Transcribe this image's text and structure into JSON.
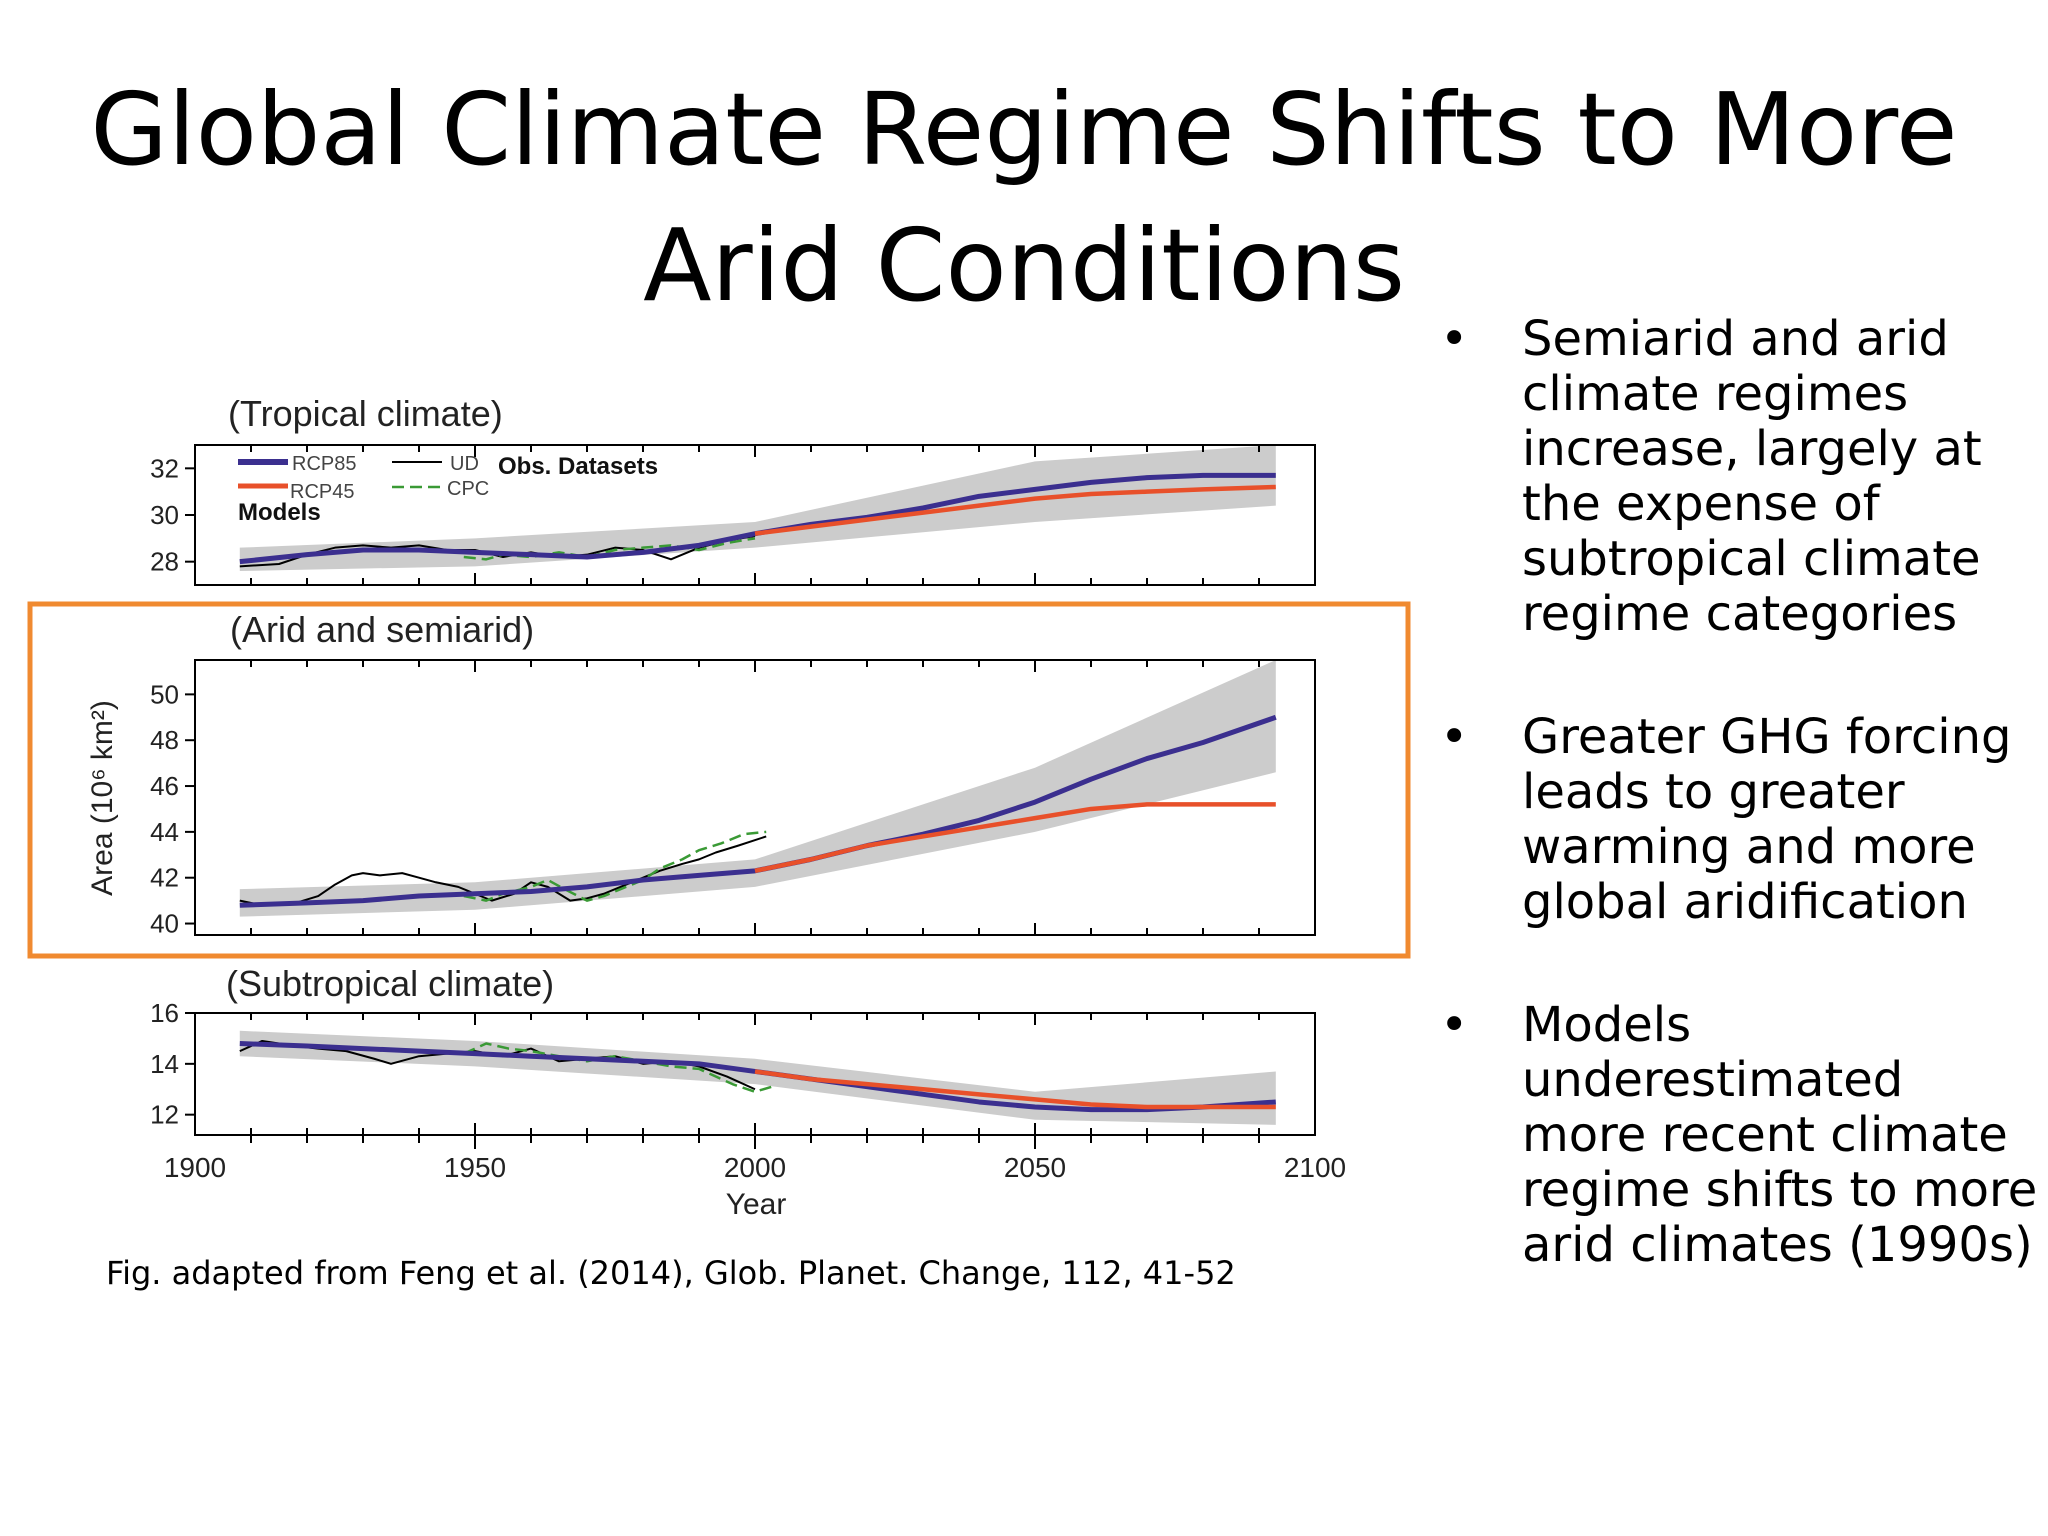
{
  "slide": {
    "title_line1": "Global Climate Regime Shifts to More",
    "title_line2": "Arid Conditions",
    "caption": "Fig. adapted from Feng et al. (2014), Glob. Planet. Change, 112, 41-52",
    "highlight_color": "#f08a30"
  },
  "bullets": [
    "Semiarid and arid climate regimes increase, largely at the expense of subtropical climate regime categories",
    "Greater GHG forcing leads to greater warming and more global aridification",
    "Models underestimated more recent climate regime shifts to more arid climates (1990s)"
  ],
  "chart_data": [
    {
      "type": "line",
      "title": "(Tropical climate)",
      "xlim": [
        1900,
        2100
      ],
      "ylim": [
        27,
        33
      ],
      "yticks": [
        28,
        30,
        32
      ],
      "legend": {
        "models_label": "Models",
        "obs_label": "Obs. Datasets",
        "placement": "top-left"
      },
      "series": [
        {
          "name": "RCP85",
          "color": "#3b2f8f",
          "x": [
            1908,
            1920,
            1930,
            1940,
            1950,
            1960,
            1970,
            1980,
            1990,
            2000,
            2010,
            2020,
            2030,
            2040,
            2050,
            2060,
            2070,
            2080,
            2093
          ],
          "y": [
            28.0,
            28.3,
            28.5,
            28.5,
            28.4,
            28.3,
            28.2,
            28.4,
            28.7,
            29.2,
            29.6,
            29.9,
            30.3,
            30.8,
            31.1,
            31.4,
            31.6,
            31.7,
            31.7
          ]
        },
        {
          "name": "RCP45",
          "color": "#e8502a",
          "x": [
            2000,
            2010,
            2020,
            2030,
            2040,
            2050,
            2060,
            2070,
            2080,
            2093
          ],
          "y": [
            29.2,
            29.5,
            29.8,
            30.1,
            30.4,
            30.7,
            30.9,
            31.0,
            31.1,
            31.2
          ]
        },
        {
          "name": "UD",
          "color": "#000000",
          "x": [
            1908,
            1915,
            1920,
            1925,
            1930,
            1935,
            1940,
            1945,
            1950,
            1955,
            1960,
            1965,
            1970,
            1975,
            1980,
            1985,
            1990,
            1995,
            2000
          ],
          "y": [
            27.8,
            27.9,
            28.3,
            28.6,
            28.7,
            28.6,
            28.7,
            28.5,
            28.5,
            28.2,
            28.4,
            28.2,
            28.3,
            28.6,
            28.5,
            28.1,
            28.6,
            28.9,
            29.1
          ]
        },
        {
          "name": "CPC",
          "color": "#3a9a35",
          "x": [
            1948,
            1952,
            1955,
            1960,
            1965,
            1970,
            1975,
            1980,
            1985,
            1990,
            1995,
            2000
          ],
          "y": [
            28.2,
            28.1,
            28.3,
            28.2,
            28.4,
            28.2,
            28.5,
            28.6,
            28.7,
            28.5,
            28.8,
            29.0
          ]
        }
      ],
      "band": {
        "x": [
          1908,
          1950,
          2000,
          2050,
          2093
        ],
        "lower": [
          27.6,
          27.8,
          28.6,
          29.7,
          30.4
        ],
        "upper": [
          28.6,
          29.0,
          29.7,
          32.3,
          33.0
        ]
      }
    },
    {
      "type": "line",
      "title": "(Arid and semiarid)",
      "ylabel": "Area (10⁶ km²)",
      "xlim": [
        1900,
        2100
      ],
      "ylim": [
        39.5,
        51.5
      ],
      "yticks": [
        40,
        42,
        44,
        46,
        48,
        50
      ],
      "series": [
        {
          "name": "RCP85",
          "color": "#3b2f8f",
          "x": [
            1908,
            1920,
            1930,
            1940,
            1950,
            1960,
            1970,
            1980,
            1990,
            2000,
            2010,
            2020,
            2030,
            2040,
            2050,
            2060,
            2070,
            2080,
            2093
          ],
          "y": [
            40.8,
            40.9,
            41.0,
            41.2,
            41.3,
            41.4,
            41.6,
            41.9,
            42.1,
            42.3,
            42.8,
            43.4,
            43.9,
            44.5,
            45.3,
            46.3,
            47.2,
            47.9,
            49.0
          ]
        },
        {
          "name": "RCP45",
          "color": "#e8502a",
          "x": [
            2000,
            2010,
            2020,
            2030,
            2040,
            2050,
            2060,
            2070,
            2080,
            2093
          ],
          "y": [
            42.3,
            42.8,
            43.4,
            43.8,
            44.2,
            44.6,
            45.0,
            45.2,
            45.2,
            45.2
          ]
        },
        {
          "name": "UD",
          "color": "#000000",
          "x": [
            1908,
            1912,
            1918,
            1922,
            1925,
            1928,
            1930,
            1933,
            1937,
            1940,
            1943,
            1947,
            1950,
            1953,
            1957,
            1960,
            1963,
            1967,
            1970,
            1973,
            1977,
            1980,
            1983,
            1987,
            1990,
            1993,
            1997,
            2002
          ],
          "y": [
            41.0,
            40.8,
            40.9,
            41.2,
            41.7,
            42.1,
            42.2,
            42.1,
            42.2,
            42.0,
            41.8,
            41.6,
            41.3,
            41.0,
            41.3,
            41.8,
            41.6,
            41.0,
            41.1,
            41.3,
            41.7,
            42.0,
            42.3,
            42.6,
            42.8,
            43.1,
            43.4,
            43.8
          ]
        },
        {
          "name": "CPC",
          "color": "#3a9a35",
          "x": [
            1948,
            1952,
            1955,
            1960,
            1963,
            1966,
            1970,
            1973,
            1977,
            1980,
            1983,
            1987,
            1990,
            1994,
            1998,
            2002
          ],
          "y": [
            41.2,
            41.0,
            41.3,
            41.6,
            41.9,
            41.5,
            41.0,
            41.2,
            41.6,
            41.9,
            42.4,
            42.8,
            43.2,
            43.5,
            43.9,
            44.0
          ]
        }
      ],
      "band": {
        "x": [
          1908,
          1950,
          2000,
          2050,
          2093
        ],
        "lower": [
          40.3,
          40.6,
          41.6,
          44.0,
          46.6
        ],
        "upper": [
          41.5,
          41.8,
          42.8,
          46.8,
          51.5
        ]
      }
    },
    {
      "type": "line",
      "title": "(Subtropical climate)",
      "xlabel": "Year",
      "xlim": [
        1900,
        2100
      ],
      "xticks": [
        1900,
        1950,
        2000,
        2050,
        2100
      ],
      "ylim": [
        11.2,
        16
      ],
      "yticks": [
        12,
        14,
        16
      ],
      "series": [
        {
          "name": "RCP85",
          "color": "#3b2f8f",
          "x": [
            1908,
            1920,
            1930,
            1940,
            1950,
            1960,
            1970,
            1980,
            1990,
            2000,
            2010,
            2020,
            2030,
            2040,
            2050,
            2060,
            2070,
            2080,
            2093
          ],
          "y": [
            14.8,
            14.7,
            14.6,
            14.5,
            14.4,
            14.3,
            14.2,
            14.1,
            14.0,
            13.7,
            13.4,
            13.1,
            12.8,
            12.5,
            12.3,
            12.2,
            12.2,
            12.3,
            12.5
          ]
        },
        {
          "name": "RCP45",
          "color": "#e8502a",
          "x": [
            2000,
            2010,
            2020,
            2030,
            2040,
            2050,
            2060,
            2070,
            2080,
            2093
          ],
          "y": [
            13.7,
            13.4,
            13.2,
            13.0,
            12.8,
            12.6,
            12.4,
            12.3,
            12.3,
            12.3
          ]
        },
        {
          "name": "UD",
          "color": "#000000",
          "x": [
            1908,
            1912,
            1918,
            1922,
            1927,
            1932,
            1935,
            1940,
            1945,
            1950,
            1955,
            1960,
            1965,
            1970,
            1975,
            1980,
            1985,
            1990,
            1995,
            2000
          ],
          "y": [
            14.5,
            14.9,
            14.7,
            14.6,
            14.5,
            14.2,
            14.0,
            14.3,
            14.4,
            14.5,
            14.3,
            14.6,
            14.1,
            14.2,
            14.3,
            14.0,
            14.1,
            13.9,
            13.5,
            13.0
          ]
        },
        {
          "name": "CPC",
          "color": "#3a9a35",
          "x": [
            1948,
            1952,
            1956,
            1960,
            1965,
            1970,
            1975,
            1980,
            1985,
            1990,
            1993,
            1996,
            2000,
            2003
          ],
          "y": [
            14.4,
            14.8,
            14.6,
            14.5,
            14.3,
            14.1,
            14.3,
            14.1,
            13.9,
            13.8,
            13.5,
            13.2,
            12.9,
            13.1
          ]
        }
      ],
      "band": {
        "x": [
          1908,
          1950,
          2000,
          2050,
          2093
        ],
        "lower": [
          14.3,
          13.9,
          13.2,
          11.8,
          11.6
        ],
        "upper": [
          15.3,
          14.9,
          14.2,
          12.9,
          13.7
        ]
      }
    }
  ]
}
